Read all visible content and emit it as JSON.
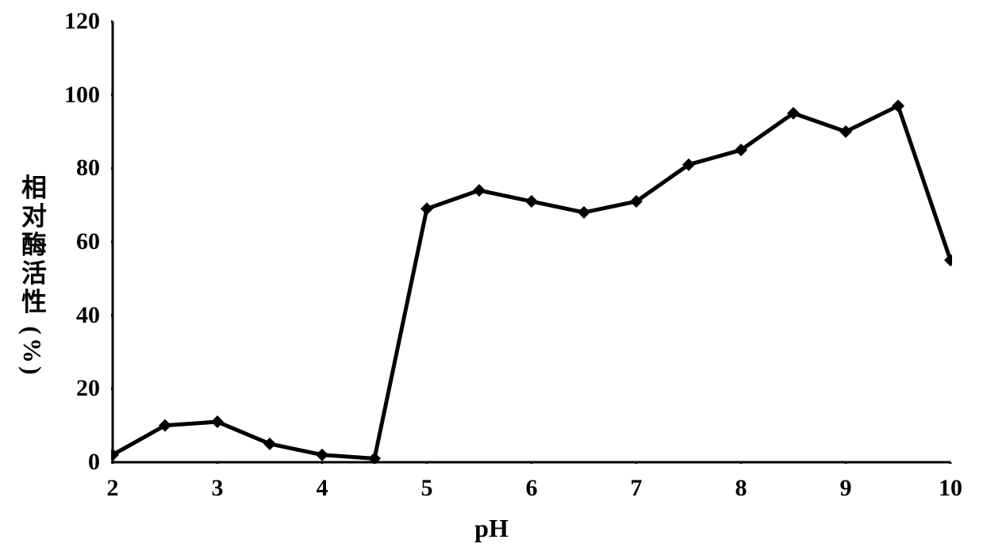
{
  "chart": {
    "type": "line",
    "x_label": "pH",
    "y_label": "相对酶活性 (%)",
    "background_color": "#ffffff",
    "axis_color": "#000000",
    "axis_width": 3,
    "xlim": [
      2,
      10
    ],
    "ylim": [
      0,
      120
    ],
    "y_ticks": [
      0,
      20,
      40,
      60,
      80,
      100,
      120
    ],
    "x_ticks": [
      2,
      3,
      4,
      5,
      6,
      7,
      8,
      9,
      10
    ],
    "tick_fontsize": 30,
    "label_fontsize": 32,
    "font_weight": "bold",
    "series": {
      "line_color": "#000000",
      "line_width": 5,
      "marker_shape": "diamond",
      "marker_color": "#000000",
      "marker_size": 16,
      "x": [
        2,
        2.5,
        3,
        3.5,
        4,
        4.5,
        5,
        5.5,
        6,
        6.5,
        7,
        7.5,
        8,
        8.5,
        9,
        9.5,
        10
      ],
      "y": [
        2,
        10,
        11,
        5,
        2,
        1,
        69,
        74,
        71,
        68,
        71,
        81,
        85,
        95,
        90,
        97,
        55
      ]
    }
  }
}
